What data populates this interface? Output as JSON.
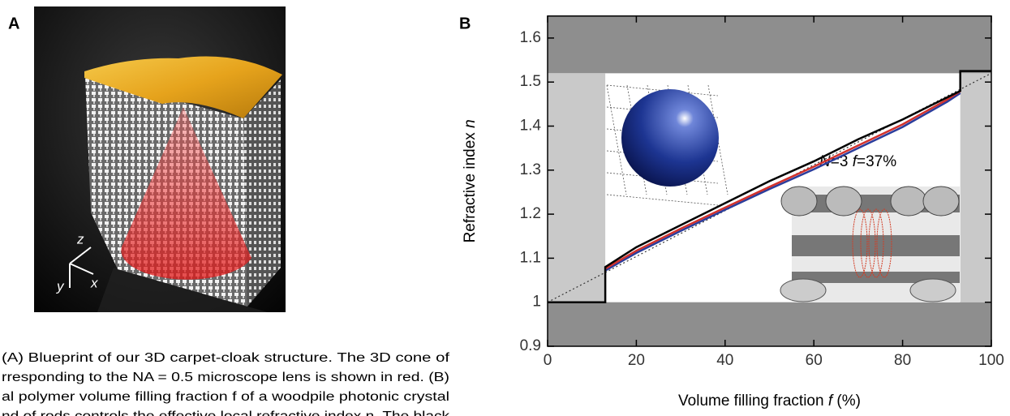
{
  "panel_a": {
    "label": "A",
    "axes": [
      "z",
      "y",
      "x"
    ]
  },
  "caption": {
    "lines": [
      "(A) Blueprint of our 3D carpet-cloak structure. The 3D cone of",
      "rresponding to the NA = 0.5 microscope lens is shown in red. (B)",
      "al polymer volume filling fraction f of a woodpile photonic crystal",
      "nd of rods controls the effective local refractive index n. The black"
    ]
  },
  "chart_data": {
    "type": "line",
    "panel_label": "B",
    "xlabel": [
      "Volume filling fraction ",
      "f",
      " (%)"
    ],
    "ylabel": [
      "Refractive index ",
      "n"
    ],
    "inset_label": [
      "N",
      "=3  ",
      "f",
      "=37%"
    ],
    "xlim": [
      0,
      100
    ],
    "xticks": [
      0,
      20,
      40,
      60,
      80,
      100
    ],
    "ylim": [
      0.9,
      1.65
    ],
    "yticks": [
      0.9,
      1.0,
      1.1,
      1.2,
      1.3,
      1.4,
      1.5,
      1.6
    ],
    "shaded_regions": [
      {
        "x": [
          0,
          100
        ],
        "y": [
          1.52,
          1.65
        ],
        "color": "#8e8e8e"
      },
      {
        "x": [
          0,
          100
        ],
        "y": [
          0.9,
          1.0
        ],
        "color": "#8e8e8e"
      },
      {
        "x": [
          0,
          13
        ],
        "y": [
          1.0,
          1.52
        ],
        "color": "#c9c9c9"
      },
      {
        "x": [
          93,
          100
        ],
        "y": [
          1.0,
          1.52
        ],
        "color": "#c9c9c9"
      }
    ],
    "series": [
      {
        "color": "#333333",
        "dashed": true,
        "x": [
          0,
          100
        ],
        "values": [
          1.0,
          1.52
        ]
      },
      {
        "color": "#2b3d9c",
        "x": [
          13,
          20,
          30,
          40,
          50,
          60,
          70,
          80,
          90,
          93
        ],
        "values": [
          1.072,
          1.112,
          1.162,
          1.21,
          1.257,
          1.302,
          1.35,
          1.398,
          1.455,
          1.475
        ]
      },
      {
        "color": "#d2322d",
        "x": [
          13,
          20,
          30,
          40,
          50,
          60,
          70,
          80,
          90,
          93
        ],
        "values": [
          1.076,
          1.117,
          1.167,
          1.215,
          1.262,
          1.308,
          1.356,
          1.404,
          1.46,
          1.479
        ]
      },
      {
        "color": "#000000",
        "x": [
          0,
          13,
          13,
          20,
          30,
          40,
          50,
          60,
          70,
          80,
          90,
          93,
          93,
          100
        ],
        "values": [
          1.0,
          1.0,
          1.08,
          1.125,
          1.175,
          1.225,
          1.275,
          1.32,
          1.37,
          1.415,
          1.465,
          1.48,
          1.525,
          1.525
        ]
      }
    ]
  }
}
